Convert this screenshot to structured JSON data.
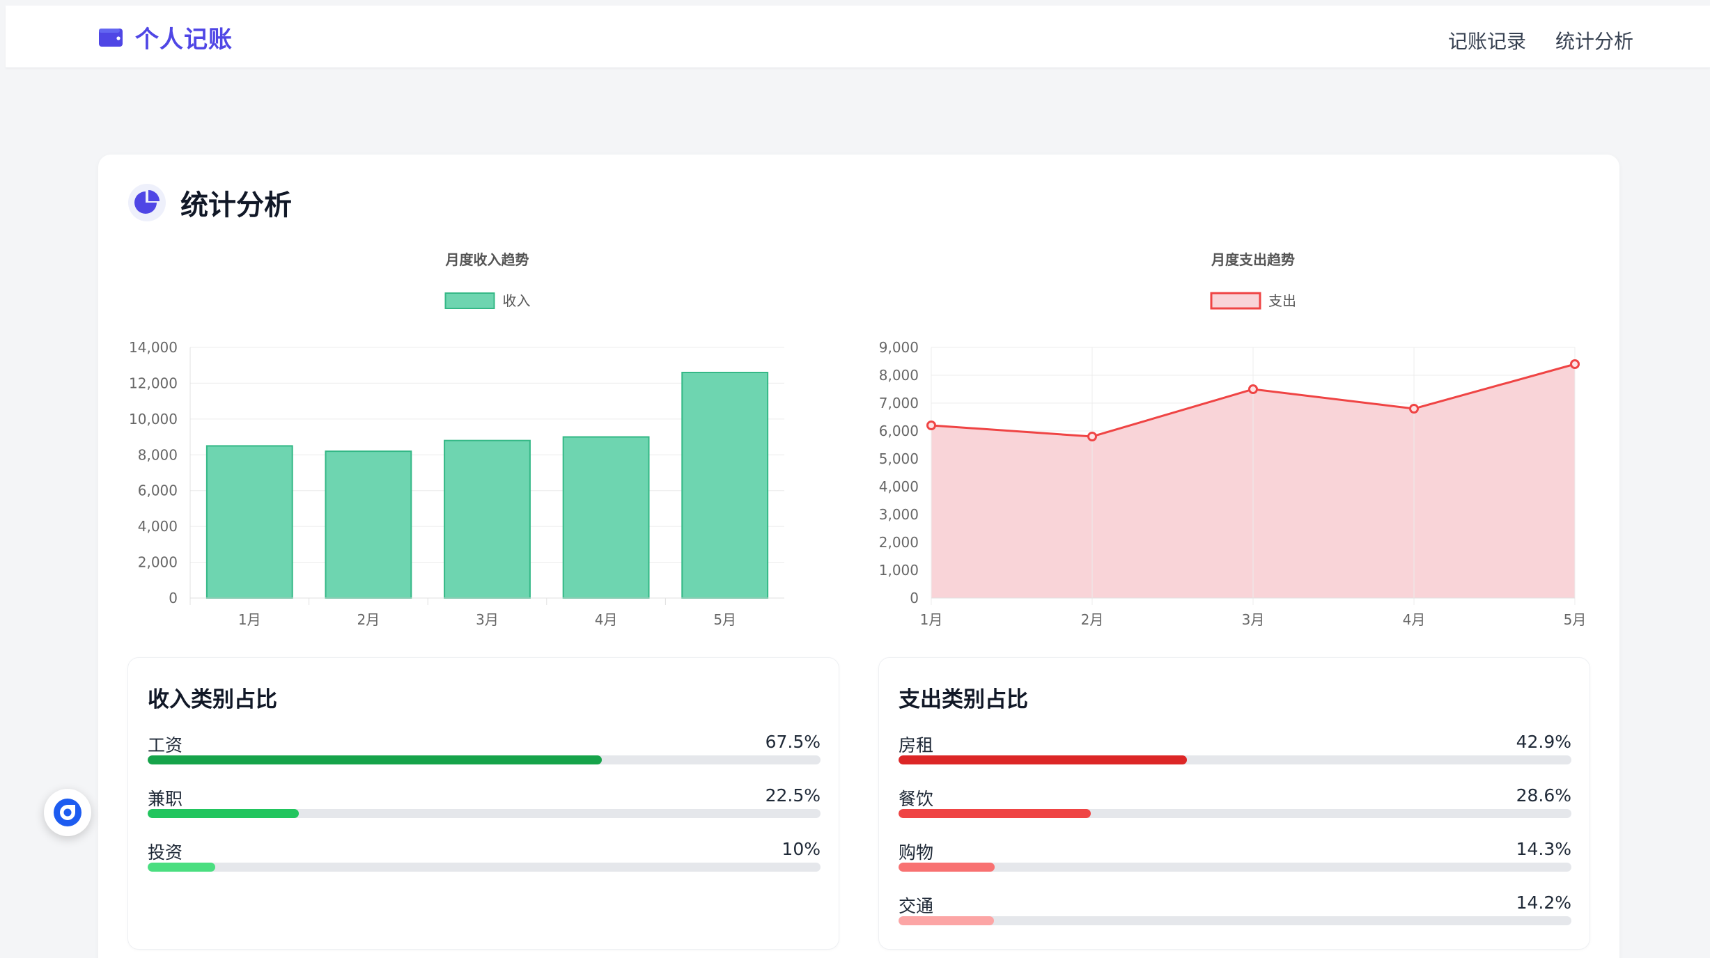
{
  "app": {
    "brand_title": "个人记账",
    "brand_icon": "wallet-icon",
    "accent": "#4f46e5"
  },
  "nav": {
    "items": [
      {
        "label": "记账记录"
      },
      {
        "label": "统计分析"
      }
    ]
  },
  "section": {
    "title": "统计分析",
    "icon": "pie-chart-icon"
  },
  "chart_data": [
    {
      "type": "bar",
      "title": "月度收入趋势",
      "categories": [
        "1月",
        "2月",
        "3月",
        "4月",
        "5月"
      ],
      "series": [
        {
          "name": "收入",
          "values": [
            8500,
            8200,
            8800,
            9000,
            12600
          ],
          "color": "#6ed5b0",
          "border": "#34b886"
        }
      ],
      "ylim": [
        0,
        14000
      ],
      "yticks": [
        0,
        2000,
        4000,
        6000,
        8000,
        10000,
        12000,
        14000
      ],
      "grid": true,
      "legend": "top-center"
    },
    {
      "type": "area",
      "title": "月度支出趋势",
      "categories": [
        "1月",
        "2月",
        "3月",
        "4月",
        "5月"
      ],
      "series": [
        {
          "name": "支出",
          "values": [
            6200,
            5800,
            7500,
            6800,
            8400
          ],
          "color": "#ef4444",
          "fill": "#f9d4d8"
        }
      ],
      "ylim": [
        0,
        9000
      ],
      "yticks": [
        0,
        1000,
        2000,
        3000,
        4000,
        5000,
        6000,
        7000,
        8000,
        9000
      ],
      "grid": true,
      "legend": "top-center"
    }
  ],
  "income_categories": {
    "title": "收入类别占比",
    "items": [
      {
        "name": "工资",
        "percent_label": "67.5%",
        "percent": 67.5,
        "color": "#16a34a"
      },
      {
        "name": "兼职",
        "percent_label": "22.5%",
        "percent": 22.5,
        "color": "#22c55e"
      },
      {
        "name": "投资",
        "percent_label": "10%",
        "percent": 10,
        "color": "#4ade80"
      }
    ]
  },
  "expense_categories": {
    "title": "支出类别占比",
    "items": [
      {
        "name": "房租",
        "percent_label": "42.9%",
        "percent": 42.9,
        "color": "#dc2626"
      },
      {
        "name": "餐饮",
        "percent_label": "28.6%",
        "percent": 28.6,
        "color": "#ef4444"
      },
      {
        "name": "购物",
        "percent_label": "14.3%",
        "percent": 14.3,
        "color": "#f87171"
      },
      {
        "name": "交通",
        "percent_label": "14.2%",
        "percent": 14.2,
        "color": "#fca5a5"
      }
    ]
  },
  "float_button": {
    "icon": "assistant-icon"
  }
}
